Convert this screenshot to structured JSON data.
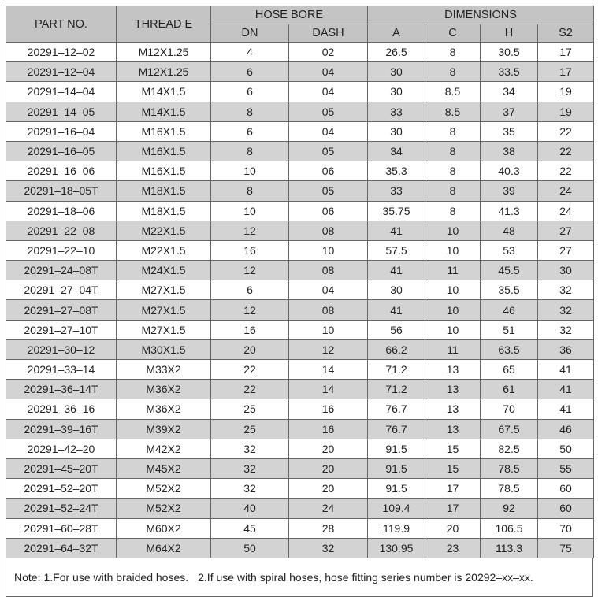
{
  "table": {
    "header": {
      "part_no": "PART NO.",
      "thread": "THREAD E",
      "hose_bore": "HOSE BORE",
      "dimensions": "DIMENSIONS",
      "sub": [
        "DN",
        "DASH",
        "A",
        "C",
        "H",
        "S2"
      ]
    },
    "rows": [
      [
        "20291–12–02",
        "M12X1.25",
        "4",
        "02",
        "26.5",
        "8",
        "30.5",
        "17"
      ],
      [
        "20291–12–04",
        "M12X1.25",
        "6",
        "04",
        "30",
        "8",
        "33.5",
        "17"
      ],
      [
        "20291–14–04",
        "M14X1.5",
        "6",
        "04",
        "30",
        "8.5",
        "34",
        "19"
      ],
      [
        "20291–14–05",
        "M14X1.5",
        "8",
        "05",
        "33",
        "8.5",
        "37",
        "19"
      ],
      [
        "20291–16–04",
        "M16X1.5",
        "6",
        "04",
        "30",
        "8",
        "35",
        "22"
      ],
      [
        "20291–16–05",
        "M16X1.5",
        "8",
        "05",
        "34",
        "8",
        "38",
        "22"
      ],
      [
        "20291–16–06",
        "M16X1.5",
        "10",
        "06",
        "35.3",
        "8",
        "40.3",
        "22"
      ],
      [
        "20291–18–05T",
        "M18X1.5",
        "8",
        "05",
        "33",
        "8",
        "39",
        "24"
      ],
      [
        "20291–18–06",
        "M18X1.5",
        "10",
        "06",
        "35.75",
        "8",
        "41.3",
        "24"
      ],
      [
        "20291–22–08",
        "M22X1.5",
        "12",
        "08",
        "41",
        "10",
        "48",
        "27"
      ],
      [
        "20291–22–10",
        "M22X1.5",
        "16",
        "10",
        "57.5",
        "10",
        "53",
        "27"
      ],
      [
        "20291–24–08T",
        "M24X1.5",
        "12",
        "08",
        "41",
        "11",
        "45.5",
        "30"
      ],
      [
        "20291–27–04T",
        "M27X1.5",
        "6",
        "04",
        "30",
        "10",
        "35.5",
        "32"
      ],
      [
        "20291–27–08T",
        "M27X1.5",
        "12",
        "08",
        "41",
        "10",
        "46",
        "32"
      ],
      [
        "20291–27–10T",
        "M27X1.5",
        "16",
        "10",
        "56",
        "10",
        "51",
        "32"
      ],
      [
        "20291–30–12",
        "M30X1.5",
        "20",
        "12",
        "66.2",
        "11",
        "63.5",
        "36"
      ],
      [
        "20291–33–14",
        "M33X2",
        "22",
        "14",
        "71.2",
        "13",
        "65",
        "41"
      ],
      [
        "20291–36–14T",
        "M36X2",
        "22",
        "14",
        "71.2",
        "13",
        "61",
        "41"
      ],
      [
        "20291–36–16",
        "M36X2",
        "25",
        "16",
        "76.7",
        "13",
        "70",
        "41"
      ],
      [
        "20291–39–16T",
        "M39X2",
        "25",
        "16",
        "76.7",
        "13",
        "67.5",
        "46"
      ],
      [
        "20291–42–20",
        "M42X2",
        "32",
        "20",
        "91.5",
        "15",
        "82.5",
        "50"
      ],
      [
        "20291–45–20T",
        "M45X2",
        "32",
        "20",
        "91.5",
        "15",
        "78.5",
        "55"
      ],
      [
        "20291–52–20T",
        "M52X2",
        "32",
        "20",
        "91.5",
        "17",
        "78.5",
        "60"
      ],
      [
        "20291–52–24T",
        "M52X2",
        "40",
        "24",
        "109.4",
        "17",
        "92",
        "60"
      ],
      [
        "20291–60–28T",
        "M60X2",
        "45",
        "28",
        "119.9",
        "20",
        "106.5",
        "70"
      ],
      [
        "20291–64–32T",
        "M64X2",
        "50",
        "32",
        "130.95",
        "23",
        "113.3",
        "75"
      ]
    ],
    "note": {
      "label": "Note:",
      "items": [
        "1.For use with braided hoses.",
        "2.If use with spiral hoses, hose fitting series number is 20292–xx–xx."
      ]
    }
  }
}
